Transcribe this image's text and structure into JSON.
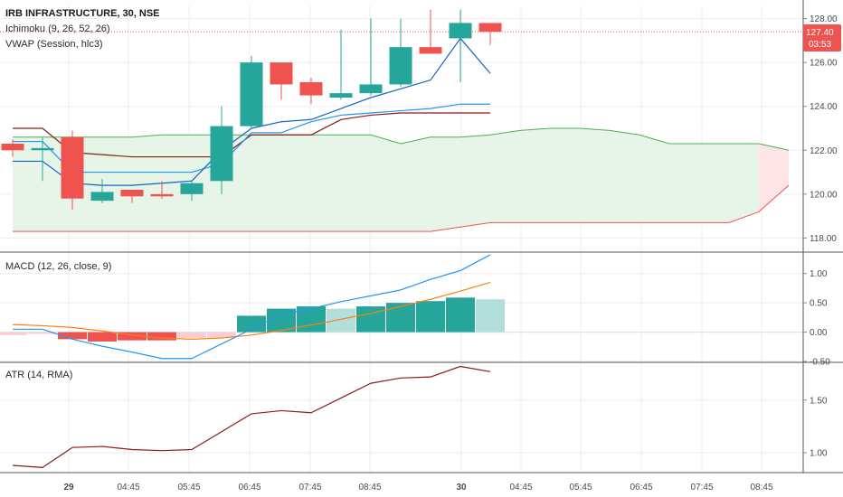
{
  "header": {
    "symbol": "IRB INFRASTRUCTURE, 30, NSE",
    "ichimoku_label": "Ichimoku (9, 26, 52, 26)",
    "vwap_label": "VWAP (Session, hlc3)",
    "macd_label": "MACD (12, 26, close, 9)",
    "atr_label": "ATR (14, RMA)"
  },
  "price_tag": {
    "price": "127.40",
    "countdown": "03:53"
  },
  "colors": {
    "up": "#26a69a",
    "down": "#ef5350",
    "ichimoku_conversion": "#2196f3",
    "ichimoku_base": "#8b1a1a",
    "cloud_line_a": "#4caf50",
    "cloud_line_b": "#ef5350",
    "cloud_fill_bull": "#e6f5e8",
    "cloud_fill_bear": "#fde4e6",
    "vwap": "#1565c0",
    "macd": "#2196f3",
    "signal": "#ff7f0e",
    "atr": "#8b1a1a",
    "grid": "#eeeeee",
    "tag_bg": "#ef5350"
  },
  "chart_data": [
    {
      "type": "candlestick",
      "title": "IRB INFRASTRUCTURE, 30, NSE",
      "ylim": [
        117.4,
        128.6
      ],
      "y_ticks": [
        "118.00",
        "120.00",
        "122.00",
        "124.00",
        "126.00",
        "128.00"
      ],
      "x_ticks": [
        "29",
        "04:45",
        "05:45",
        "06:45",
        "07:45",
        "08:45",
        "30",
        "04:45",
        "05:45",
        "06:45",
        "07:45",
        "08:45"
      ],
      "candles": [
        {
          "t": 0,
          "o": 122.3,
          "h": 122.5,
          "l": 121.7,
          "c": 122.0
        },
        {
          "t": 1,
          "o": 122.0,
          "h": 122.6,
          "l": 120.6,
          "c": 122.1
        },
        {
          "t": 2,
          "o": 122.6,
          "h": 122.9,
          "l": 119.3,
          "c": 119.8
        },
        {
          "t": 3,
          "o": 119.7,
          "h": 120.7,
          "l": 119.6,
          "c": 120.1
        },
        {
          "t": 4,
          "o": 120.2,
          "h": 120.2,
          "l": 119.6,
          "c": 119.9
        },
        {
          "t": 5,
          "o": 120.0,
          "h": 120.6,
          "l": 119.8,
          "c": 119.9
        },
        {
          "t": 6,
          "o": 120.0,
          "h": 120.6,
          "l": 119.7,
          "c": 120.5
        },
        {
          "t": 7,
          "o": 120.6,
          "h": 124.0,
          "l": 120.0,
          "c": 123.1
        },
        {
          "t": 8,
          "o": 123.1,
          "h": 126.3,
          "l": 123.0,
          "c": 126.0
        },
        {
          "t": 9,
          "o": 126.0,
          "h": 126.0,
          "l": 124.3,
          "c": 125.0
        },
        {
          "t": 10,
          "o": 125.1,
          "h": 125.3,
          "l": 124.1,
          "c": 124.5
        },
        {
          "t": 11,
          "o": 124.4,
          "h": 127.5,
          "l": 124.3,
          "c": 124.6
        },
        {
          "t": 12,
          "o": 124.6,
          "h": 128.0,
          "l": 124.5,
          "c": 125.0
        },
        {
          "t": 13,
          "o": 125.0,
          "h": 128.0,
          "l": 124.9,
          "c": 126.7
        },
        {
          "t": 14,
          "o": 126.7,
          "h": 128.4,
          "l": 126.4,
          "c": 126.4
        },
        {
          "t": 15,
          "o": 127.1,
          "h": 128.4,
          "l": 125.1,
          "c": 127.8
        },
        {
          "t": 16,
          "o": 127.8,
          "h": 127.7,
          "l": 126.8,
          "c": 127.4
        }
      ],
      "vwap": [
        [
          0,
          121.5
        ],
        [
          1,
          121.5
        ],
        [
          2,
          120.5
        ],
        [
          3,
          120.4
        ],
        [
          4,
          120.4
        ],
        [
          5,
          120.5
        ],
        [
          6,
          120.6
        ],
        [
          7,
          122.0
        ],
        [
          8,
          123.0
        ],
        [
          9,
          123.3
        ],
        [
          10,
          123.4
        ],
        [
          11,
          123.9
        ],
        [
          12,
          124.4
        ],
        [
          13,
          124.8
        ],
        [
          14,
          125.2
        ],
        [
          15,
          127.1
        ],
        [
          16,
          125.5
        ]
      ],
      "conversion_line": [
        [
          0,
          122.4
        ],
        [
          1,
          122.4
        ],
        [
          2,
          121.0
        ],
        [
          3,
          121.0
        ],
        [
          4,
          121.0
        ],
        [
          5,
          121.0
        ],
        [
          6,
          121.0
        ],
        [
          7,
          121.4
        ],
        [
          8,
          122.8
        ],
        [
          9,
          122.8
        ],
        [
          10,
          123.3
        ],
        [
          11,
          123.6
        ],
        [
          12,
          123.7
        ],
        [
          13,
          123.8
        ],
        [
          14,
          123.9
        ],
        [
          15,
          124.1
        ],
        [
          16,
          124.1
        ]
      ],
      "base_line": [
        [
          0,
          123.0
        ],
        [
          1,
          123.0
        ],
        [
          2,
          121.9
        ],
        [
          3,
          121.8
        ],
        [
          4,
          121.7
        ],
        [
          5,
          121.7
        ],
        [
          6,
          121.7
        ],
        [
          7,
          121.7
        ],
        [
          8,
          122.7
        ],
        [
          9,
          122.7
        ],
        [
          10,
          122.7
        ],
        [
          11,
          123.4
        ],
        [
          12,
          123.6
        ],
        [
          13,
          123.7
        ],
        [
          14,
          123.7
        ],
        [
          15,
          123.7
        ],
        [
          16,
          123.7
        ]
      ],
      "cloud_span_a": [
        [
          0,
          122.6
        ],
        [
          1,
          122.6
        ],
        [
          2,
          122.6
        ],
        [
          3,
          122.6
        ],
        [
          4,
          122.6
        ],
        [
          5,
          122.7
        ],
        [
          6,
          122.7
        ],
        [
          7,
          122.7
        ],
        [
          8,
          122.7
        ],
        [
          9,
          122.7
        ],
        [
          10,
          122.7
        ],
        [
          11,
          122.7
        ],
        [
          12,
          122.7
        ],
        [
          13,
          122.3
        ],
        [
          14,
          122.6
        ],
        [
          15,
          122.6
        ],
        [
          16,
          122.7
        ],
        [
          17,
          122.9
        ],
        [
          18,
          123.0
        ],
        [
          19,
          123.0
        ],
        [
          20,
          122.9
        ],
        [
          21,
          122.7
        ],
        [
          22,
          122.3
        ],
        [
          23,
          122.3
        ],
        [
          24,
          122.3
        ],
        [
          25,
          122.3
        ],
        [
          26,
          122.0
        ]
      ],
      "cloud_span_b": [
        [
          0,
          118.3
        ],
        [
          1,
          118.3
        ],
        [
          2,
          118.3
        ],
        [
          3,
          118.3
        ],
        [
          4,
          118.3
        ],
        [
          5,
          118.3
        ],
        [
          6,
          118.3
        ],
        [
          7,
          118.3
        ],
        [
          8,
          118.3
        ],
        [
          9,
          118.3
        ],
        [
          10,
          118.3
        ],
        [
          11,
          118.3
        ],
        [
          12,
          118.3
        ],
        [
          13,
          118.3
        ],
        [
          14,
          118.3
        ],
        [
          15,
          118.5
        ],
        [
          16,
          118.7
        ],
        [
          17,
          118.7
        ],
        [
          18,
          118.7
        ],
        [
          19,
          118.7
        ],
        [
          20,
          118.7
        ],
        [
          21,
          118.7
        ],
        [
          22,
          118.7
        ],
        [
          23,
          118.7
        ],
        [
          24,
          118.7
        ],
        [
          25,
          119.2
        ],
        [
          26,
          120.4
        ]
      ]
    },
    {
      "type": "bar",
      "title": "MACD (12, 26, close, 9)",
      "ylim": [
        -0.5,
        1.35
      ],
      "y_ticks": [
        "1.00",
        "0.50",
        "0.00",
        "-0.50"
      ],
      "histogram": [
        -0.05,
        -0.03,
        -0.12,
        -0.16,
        -0.14,
        -0.14,
        -0.1,
        -0.1,
        0.28,
        0.4,
        0.44,
        0.4,
        0.44,
        0.5,
        0.53,
        0.59,
        0.56
      ],
      "histogram_colors": [
        "#fccdd2",
        "#fccdd2",
        "#ef5350",
        "#ef5350",
        "#ef5350",
        "#ef5350",
        "#fccdd2",
        "#fccdd2",
        "#26a69a",
        "#26a69a",
        "#26a69a",
        "#b2dfdb",
        "#26a69a",
        "#26a69a",
        "#26a69a",
        "#26a69a",
        "#b2dfdb"
      ],
      "macd": [
        [
          0,
          0.05
        ],
        [
          1,
          0.05
        ],
        [
          2,
          -0.12
        ],
        [
          3,
          -0.24
        ],
        [
          4,
          -0.34
        ],
        [
          5,
          -0.45
        ],
        [
          6,
          -0.45
        ],
        [
          7,
          -0.2
        ],
        [
          8,
          0.05
        ],
        [
          9,
          0.3
        ],
        [
          10,
          0.4
        ],
        [
          11,
          0.52
        ],
        [
          12,
          0.62
        ],
        [
          13,
          0.72
        ],
        [
          14,
          0.9
        ],
        [
          15,
          1.05
        ],
        [
          16,
          1.32
        ]
      ],
      "signal": [
        [
          0,
          0.13
        ],
        [
          1,
          0.11
        ],
        [
          2,
          0.08
        ],
        [
          3,
          0.02
        ],
        [
          4,
          -0.05
        ],
        [
          5,
          -0.1
        ],
        [
          6,
          -0.12
        ],
        [
          7,
          -0.1
        ],
        [
          8,
          -0.05
        ],
        [
          9,
          0.03
        ],
        [
          10,
          0.12
        ],
        [
          11,
          0.22
        ],
        [
          12,
          0.32
        ],
        [
          13,
          0.44
        ],
        [
          14,
          0.56
        ],
        [
          15,
          0.7
        ],
        [
          16,
          0.85
        ]
      ]
    },
    {
      "type": "line",
      "title": "ATR (14, RMA)",
      "ylim": [
        0.82,
        1.85
      ],
      "y_ticks": [
        "1.50",
        "1.00"
      ],
      "atr": [
        [
          0,
          0.88
        ],
        [
          1,
          0.86
        ],
        [
          2,
          1.05
        ],
        [
          3,
          1.06
        ],
        [
          4,
          1.03
        ],
        [
          5,
          1.02
        ],
        [
          6,
          1.03
        ],
        [
          7,
          1.2
        ],
        [
          8,
          1.37
        ],
        [
          9,
          1.4
        ],
        [
          10,
          1.38
        ],
        [
          11,
          1.52
        ],
        [
          12,
          1.66
        ],
        [
          13,
          1.71
        ],
        [
          14,
          1.72
        ],
        [
          15,
          1.82
        ],
        [
          16,
          1.77
        ]
      ]
    }
  ]
}
